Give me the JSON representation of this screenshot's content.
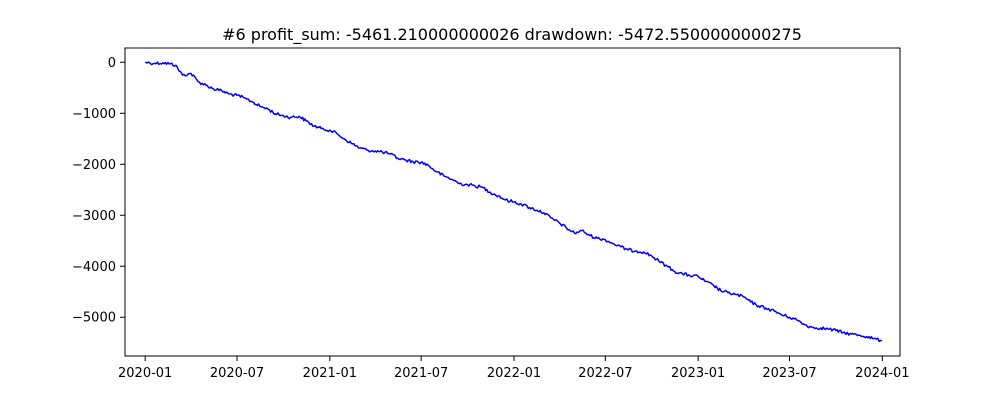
{
  "chart_data": {
    "type": "line",
    "title": "#6   profit_sum: -5461.210000000026 drawdown: -5472.5500000000275",
    "xlabel": "",
    "ylabel": "",
    "x_ticks": [
      "2020-01",
      "2020-07",
      "2021-01",
      "2021-07",
      "2022-01",
      "2022-07",
      "2023-01",
      "2023-07",
      "2024-01"
    ],
    "y_ticks": [
      0,
      -1000,
      -2000,
      -3000,
      -4000,
      -5000
    ],
    "y_tick_labels": [
      "0",
      "−1000",
      "−2000",
      "−3000",
      "−4000",
      "−5000"
    ],
    "xlim": [
      "2019-11-22",
      "2024-02-05"
    ],
    "ylim": [
      -5760,
      280
    ],
    "grid": false,
    "line_color": "#0000ff",
    "series": [
      {
        "x": [
          "2020-01-01",
          "2020-01-20",
          "2020-02-05",
          "2020-02-20",
          "2020-03-01",
          "2020-03-15",
          "2020-04-01",
          "2020-04-15",
          "2020-05-01",
          "2020-05-15",
          "2020-06-01",
          "2020-06-15",
          "2020-07-01",
          "2020-07-15",
          "2020-08-01",
          "2020-08-15",
          "2020-09-01",
          "2020-09-15",
          "2020-10-01",
          "2020-10-15",
          "2020-11-01",
          "2020-11-15",
          "2020-12-01",
          "2020-12-15",
          "2021-01-01",
          "2021-01-15",
          "2021-02-01",
          "2021-02-15",
          "2021-03-01",
          "2021-03-15",
          "2021-04-01",
          "2021-04-15",
          "2021-05-01",
          "2021-05-15",
          "2021-06-01",
          "2021-06-15",
          "2021-07-01",
          "2021-07-15",
          "2021-08-01",
          "2021-08-15",
          "2021-09-01",
          "2021-09-15",
          "2021-10-01",
          "2021-10-15",
          "2021-11-01",
          "2021-11-15",
          "2021-12-01",
          "2021-12-15",
          "2022-01-01",
          "2022-01-15",
          "2022-02-01",
          "2022-02-15",
          "2022-03-01",
          "2022-03-15",
          "2022-04-01",
          "2022-04-15",
          "2022-05-01",
          "2022-05-15",
          "2022-06-01",
          "2022-06-15",
          "2022-07-01",
          "2022-07-15",
          "2022-08-01",
          "2022-08-15",
          "2022-09-01",
          "2022-09-15",
          "2022-10-01",
          "2022-10-15",
          "2022-11-01",
          "2022-11-15",
          "2022-12-01",
          "2022-12-15",
          "2023-01-01",
          "2023-01-15",
          "2023-02-01",
          "2023-02-15",
          "2023-03-01",
          "2023-03-15",
          "2023-04-01",
          "2023-04-15",
          "2023-05-01",
          "2023-05-15",
          "2023-06-01",
          "2023-06-15",
          "2023-07-01",
          "2023-07-15",
          "2023-08-01",
          "2023-08-15",
          "2023-09-01",
          "2023-09-15",
          "2023-10-01",
          "2023-10-15",
          "2023-11-01",
          "2023-11-15",
          "2023-12-01",
          "2023-12-15",
          "2023-12-31"
        ],
        "y": [
          0,
          -20,
          -10,
          -30,
          -60,
          -250,
          -220,
          -380,
          -450,
          -520,
          -560,
          -620,
          -650,
          -700,
          -780,
          -860,
          -920,
          -1010,
          -1050,
          -1080,
          -1060,
          -1150,
          -1250,
          -1300,
          -1330,
          -1400,
          -1520,
          -1600,
          -1680,
          -1720,
          -1740,
          -1760,
          -1800,
          -1880,
          -1920,
          -1950,
          -1960,
          -2020,
          -2150,
          -2230,
          -2300,
          -2380,
          -2400,
          -2420,
          -2460,
          -2550,
          -2620,
          -2700,
          -2740,
          -2780,
          -2850,
          -2900,
          -2950,
          -3050,
          -3150,
          -3250,
          -3350,
          -3300,
          -3400,
          -3450,
          -3480,
          -3550,
          -3620,
          -3680,
          -3700,
          -3720,
          -3800,
          -3900,
          -4000,
          -4100,
          -4150,
          -4180,
          -4200,
          -4300,
          -4380,
          -4480,
          -4520,
          -4550,
          -4600,
          -4700,
          -4780,
          -4820,
          -4880,
          -4950,
          -5000,
          -5050,
          -5150,
          -5200,
          -5210,
          -5230,
          -5260,
          -5300,
          -5330,
          -5350,
          -5380,
          -5420,
          -5461
        ]
      }
    ]
  }
}
